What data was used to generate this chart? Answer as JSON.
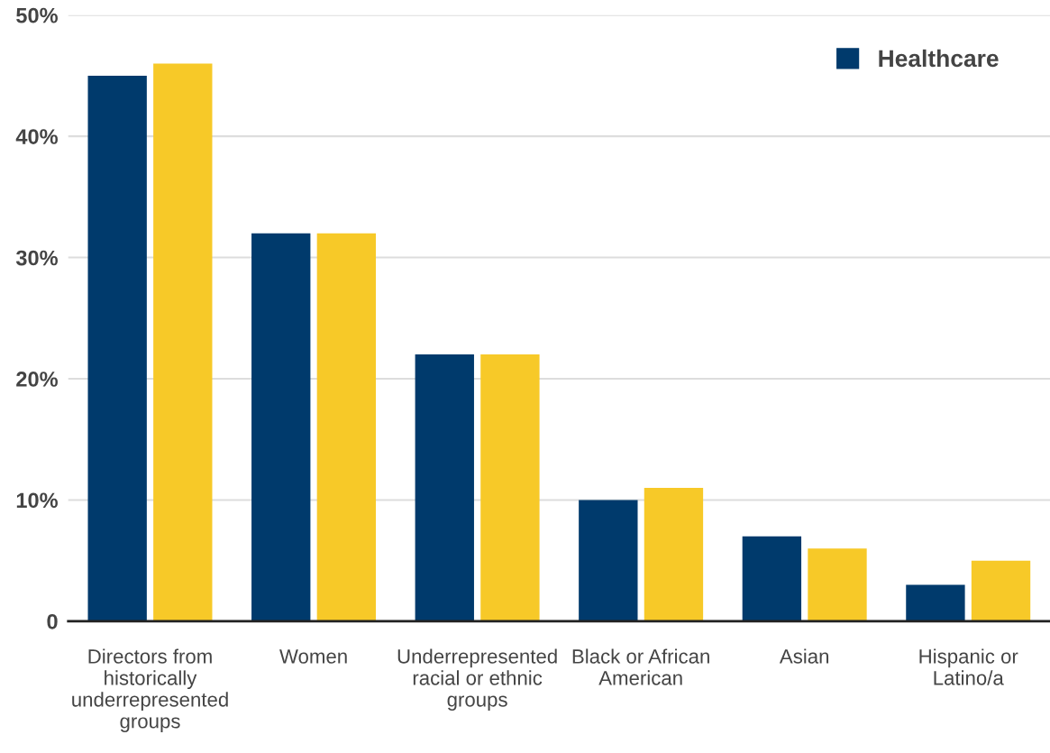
{
  "chart_data": {
    "type": "bar",
    "categories": [
      "Directors from historically underrepresented groups",
      "Women",
      "Underrepresented racial or ethnic groups",
      "Black or African American",
      "Asian",
      "Hispanic or Latino/a"
    ],
    "series": [
      {
        "name": "Healthcare",
        "color": "#003a6c",
        "values": [
          45,
          32,
          22,
          10,
          7,
          3
        ]
      },
      {
        "color": "#f7c928",
        "values": [
          46,
          32,
          22,
          11,
          6,
          5
        ]
      }
    ],
    "ylim": [
      0,
      50
    ],
    "yticks": [
      0,
      {
        "value": 10,
        "label": "10%"
      },
      {
        "value": 20,
        "label": "20%"
      },
      {
        "value": 30,
        "label": "30%"
      },
      {
        "value": 40,
        "label": "40%"
      },
      {
        "value": 50,
        "label": "50%"
      }
    ],
    "grid": "y",
    "legend": "top right"
  }
}
